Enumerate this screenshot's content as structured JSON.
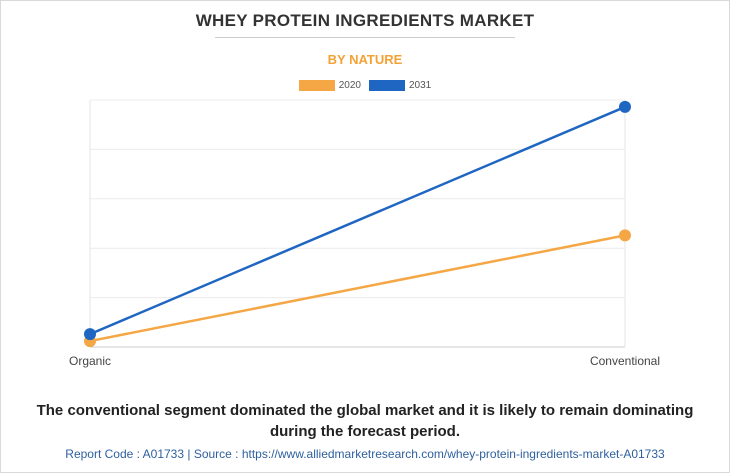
{
  "title": "WHEY PROTEIN INGREDIENTS MARKET",
  "subtitle": "BY NATURE",
  "caption_line1": "The conventional segment dominated the global market and it is likely to remain dominating",
  "caption_line2": "during the forecast period.",
  "footer": "Report Code : A01733  |  Source : https://www.alliedmarketresearch.com/whey-protein-ingredients-market-A01733",
  "colors": {
    "2020": "#f4a744",
    "2031": "#1f66c2"
  },
  "chart_data": {
    "type": "line",
    "categories": [
      "Organic",
      "Conventional"
    ],
    "series": [
      {
        "name": "2020",
        "values": [
          0.6,
          11.3
        ]
      },
      {
        "name": "2031",
        "values": [
          1.3,
          24.3
        ]
      }
    ],
    "ylim": [
      0,
      25
    ],
    "grid": true,
    "y_tick_labels_shown": false,
    "legend_position": "top-center"
  }
}
